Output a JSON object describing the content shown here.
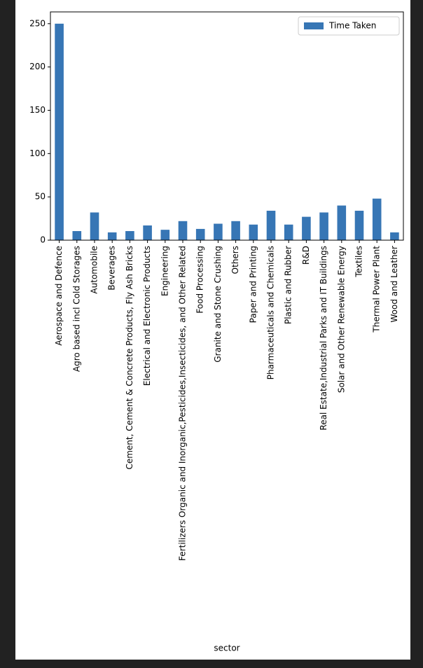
{
  "chart_data": {
    "type": "bar",
    "x_label": "sector",
    "categories": [
      "Aerospace and Defence",
      "Agro based incl Cold Storages",
      "Automobile",
      "Beverages",
      "Cement, Cement & Concrete Products, Fly Ash Bricks",
      "Electrical and Electronic Products",
      "Engineering",
      "Fertilizers Organic and Inorganic,Pesticides,Insecticides, and Other Related",
      "Food Processing",
      "Granite and Stone Crushing",
      "Others",
      "Paper and Printing",
      "Pharmaceuticals and Chemicals",
      "Plastic and Rubber",
      "R&D",
      "Real Estate,Industrial Parks and IT Buildings",
      "Solar and Other Renewable Energy",
      "Textiles",
      "Thermal Power Plant",
      "Wood and Leather"
    ],
    "series": [
      {
        "name": "Time Taken",
        "color": "#3776b5",
        "values": [
          250,
          10.5,
          32,
          9,
          10.5,
          17,
          12,
          22,
          13,
          19,
          22,
          18,
          34,
          18,
          27,
          32,
          40,
          34,
          48,
          9
        ]
      }
    ],
    "ylim": [
      0,
      263.6
    ],
    "yticks": [
      0,
      50,
      100,
      150,
      200,
      250
    ],
    "legend": "upper right"
  }
}
